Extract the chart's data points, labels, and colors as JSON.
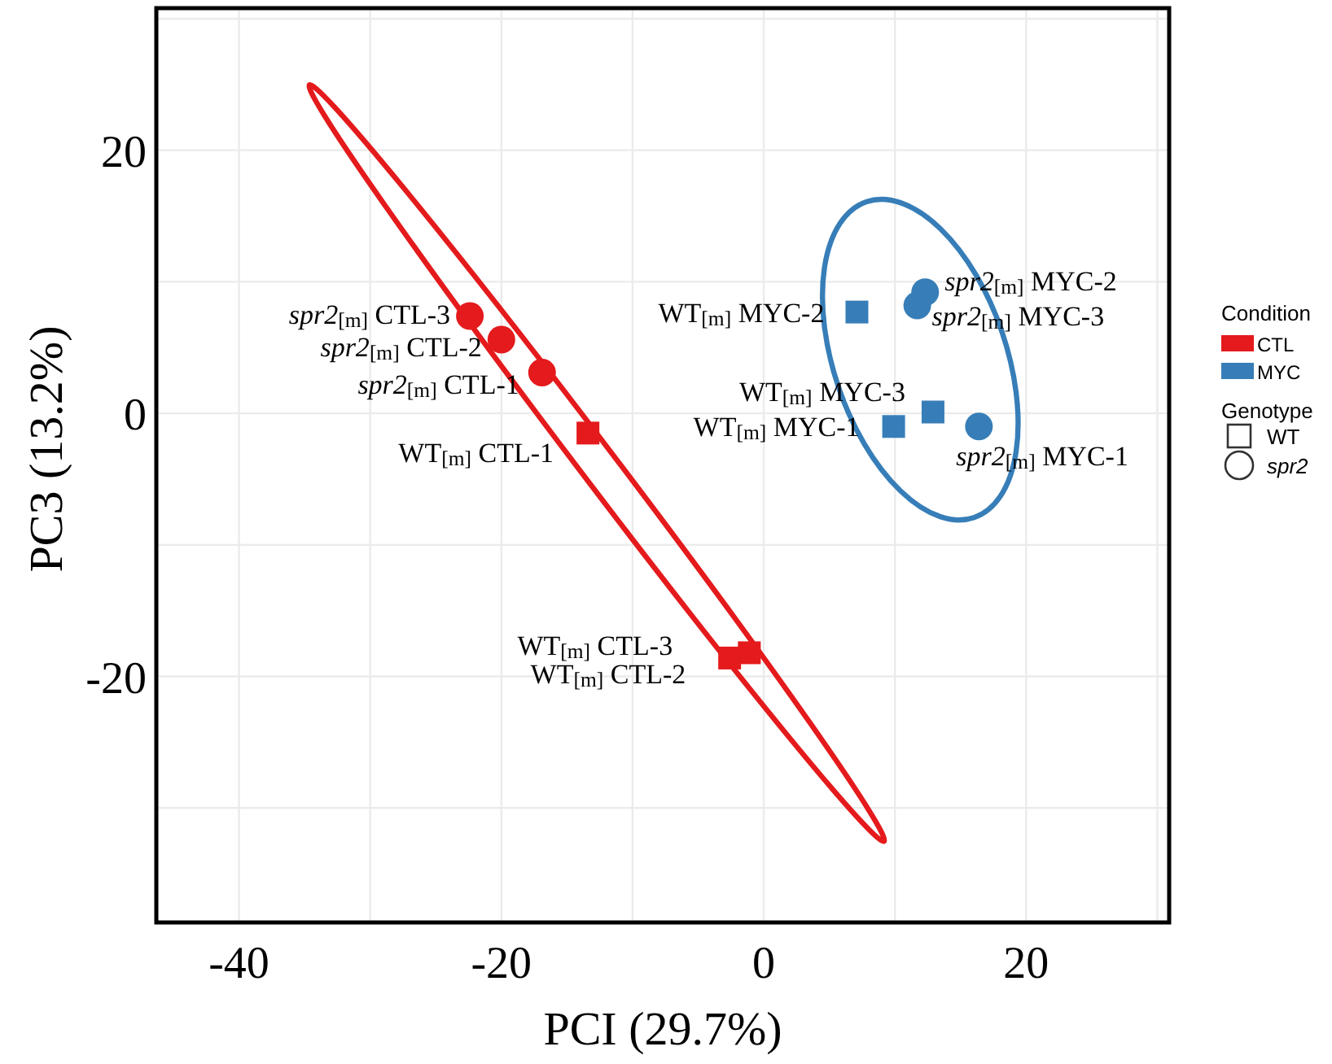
{
  "chart_data": {
    "type": "scatter",
    "xlabel": "PCI (29.7%)",
    "ylabel": "PC3 (13.2%)",
    "xlim": [
      -46.3,
      30.9
    ],
    "ylim": [
      -38.7,
      30.8
    ],
    "xticks": [
      -40,
      {
        "value": -30,
        "label": null
      },
      -20,
      {
        "value": -10,
        "label": null
      },
      0,
      {
        "value": 10,
        "label": null
      },
      20,
      {
        "value": 30,
        "label": null
      }
    ],
    "yticks": [
      {
        "value": -30,
        "label": null
      },
      -20,
      {
        "value": -10,
        "label": null
      },
      0,
      {
        "value": 10,
        "label": null
      },
      20,
      {
        "value": 30,
        "label": null
      }
    ],
    "grid": true,
    "legend": "right",
    "legend_title": "Condition",
    "series": [
      {
        "name": "CTL",
        "color": "#e41a1c",
        "marker": "square",
        "x": [
          -13.4,
          -1.1,
          -2.6
        ],
        "values": [
          -1.5,
          -18.2,
          -18.6
        ]
      },
      {
        "color": "#e41a1c",
        "marker": "circle",
        "x": [
          -16.9,
          -20.0,
          -22.4
        ],
        "values": [
          3.1,
          5.6,
          7.4
        ]
      },
      {
        "name": "MYC",
        "color": "#377eb8",
        "marker": "square",
        "x": [
          9.9,
          7.1,
          12.9
        ],
        "values": [
          -1.0,
          7.7,
          0.1
        ]
      },
      {
        "color": "#377eb8",
        "marker": "circle",
        "x": [
          16.4,
          12.3,
          11.7
        ],
        "values": [
          -1.0,
          9.2,
          8.2
        ]
      }
    ],
    "annotations": [
      {
        "text": "spr2$_{[m]}$ CTL-3",
        "x": -22.4,
        "y": 7.4
      },
      {
        "text": "spr2$_{[m]}$ CTL-2",
        "x": -20.0,
        "y": 5.6
      },
      {
        "text": "spr2$_{[m]}$ CTL-1",
        "x": -16.9,
        "y": 3.1
      },
      {
        "text": "WT$_{[m]}$ CTL-1",
        "x": -13.4,
        "y": -1.5
      },
      {
        "text": "WT$_{[m]}$ CTL-3",
        "x": -2.6,
        "y": -18.6
      },
      {
        "text": "WT$_{[m]}$ CTL-2",
        "x": -1.1,
        "y": -18.2
      },
      {
        "text": "WT$_{[m]}$ MYC-2",
        "x": 7.1,
        "y": 7.7
      },
      {
        "text": "spr2$_{[m]}$ MYC-2",
        "x": 12.3,
        "y": 9.2
      },
      {
        "text": "spr2$_{[m]}$ MYC-3",
        "x": 11.7,
        "y": 8.2
      },
      {
        "text": "WT$_{[m]}$ MYC-3",
        "x": 12.9,
        "y": 0.1
      },
      {
        "text": "WT$_{[m]}$ MYC-1",
        "x": 9.9,
        "y": -1.0
      },
      {
        "text": "spr2$_{[m]}$ MYC-1",
        "x": 16.4,
        "y": -1.0
      },
      "Genotype",
      "WT",
      "spr2"
    ]
  }
}
